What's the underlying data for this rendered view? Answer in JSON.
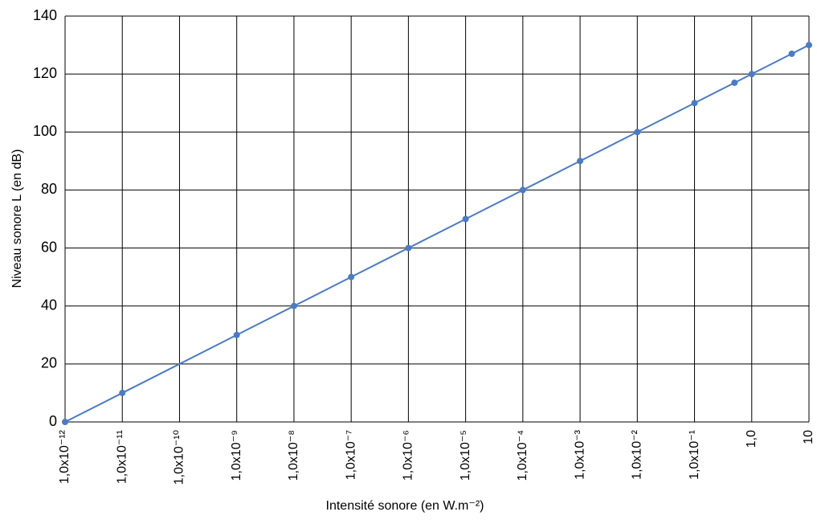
{
  "chart_data": {
    "type": "line",
    "x_label": "Intensité sonore (en W.m⁻²)",
    "y_label": "Niveau sonore L (en dB)",
    "xscale": "log",
    "xlim": [
      1e-12,
      10
    ],
    "ylim": [
      0,
      140
    ],
    "xticks": [
      {
        "value": 1e-12,
        "label": "1,0x10⁻¹²"
      },
      {
        "value": 1e-11,
        "label": "1,0x10⁻¹¹"
      },
      {
        "value": 1e-10,
        "label": "1,0x10⁻¹⁰"
      },
      {
        "value": 1e-09,
        "label": "1,0x10⁻⁹"
      },
      {
        "value": 1e-08,
        "label": "1,0x10⁻⁸"
      },
      {
        "value": 1e-07,
        "label": "1,0x10⁻⁷"
      },
      {
        "value": 1e-06,
        "label": "1,0x10⁻⁶"
      },
      {
        "value": 1e-05,
        "label": "1,0x10⁻⁵"
      },
      {
        "value": 0.0001,
        "label": "1,0x10⁻⁴"
      },
      {
        "value": 0.001,
        "label": "1,0x10⁻³"
      },
      {
        "value": 0.01,
        "label": "1,0x10⁻²"
      },
      {
        "value": 0.1,
        "label": "1,0x10⁻¹"
      },
      {
        "value": 1,
        "label": "1,0"
      },
      10
    ],
    "yticks": [
      0,
      20,
      40,
      60,
      80,
      100,
      120,
      140
    ],
    "grid": true,
    "series": [
      {
        "color": "#4a7bc8",
        "x": [
          1e-12,
          1e-11,
          1e-09,
          1e-08,
          1e-07,
          1e-06,
          1e-05,
          0.0001,
          0.001,
          0.01,
          0.1,
          0.5,
          1,
          5,
          10
        ],
        "values": [
          0,
          10,
          30,
          40,
          50,
          60,
          70,
          80,
          90,
          100,
          110,
          117,
          120,
          127,
          130
        ]
      }
    ]
  }
}
